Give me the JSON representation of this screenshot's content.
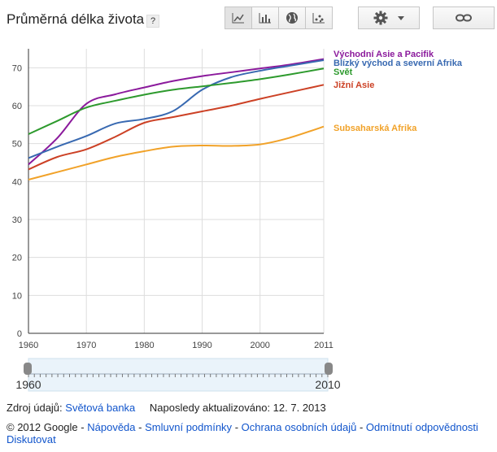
{
  "header": {
    "title": "Průměrná délka života",
    "help": "?"
  },
  "toolbar": {
    "icons": [
      "line-chart-icon",
      "bar-chart-icon",
      "globe-icon",
      "scatter-icon"
    ],
    "settings_icon": "gear-icon",
    "link_icon": "link-icon"
  },
  "chart_data": {
    "type": "line",
    "x": [
      1960,
      1965,
      1970,
      1975,
      1980,
      1985,
      1990,
      1995,
      2000,
      2005,
      2011
    ],
    "xticks": [
      "1960",
      "1970",
      "1980",
      "1990",
      "2000",
      "2011"
    ],
    "xtick_values": [
      1960,
      1970,
      1980,
      1990,
      2000,
      2011
    ],
    "yticks": [
      "0",
      "10",
      "20",
      "30",
      "40",
      "50",
      "60",
      "70"
    ],
    "ylim": [
      0,
      75
    ],
    "xlim": [
      1960,
      2011
    ],
    "series": [
      {
        "name": "Východní Asie a Pacifik",
        "color": "#8b1a9c",
        "values": [
          44.5,
          51.5,
          60.5,
          63.0,
          64.8,
          66.5,
          67.8,
          68.8,
          69.8,
          70.8,
          72.3
        ]
      },
      {
        "name": "Blízký východ a severní Afrika",
        "color": "#3869b1",
        "values": [
          46.2,
          49.2,
          52.0,
          55.3,
          56.5,
          58.6,
          64.2,
          67.5,
          69.2,
          70.5,
          72.0
        ]
      },
      {
        "name": "Svět",
        "color": "#2d9a2d",
        "values": [
          52.5,
          56.0,
          59.5,
          61.3,
          62.9,
          64.2,
          65.1,
          66.0,
          67.0,
          68.2,
          69.8
        ]
      },
      {
        "name": "Jižní Asie",
        "color": "#cc4125",
        "values": [
          43.2,
          46.5,
          48.5,
          51.8,
          55.5,
          57.0,
          58.5,
          60.0,
          61.8,
          63.5,
          65.5
        ]
      },
      {
        "name": "Subsaharská Afrika",
        "color": "#f1a229",
        "values": [
          40.5,
          42.5,
          44.5,
          46.5,
          48.0,
          49.2,
          49.5,
          49.4,
          49.8,
          51.5,
          54.5
        ]
      }
    ]
  },
  "slider": {
    "start": "1960",
    "end": "2010"
  },
  "footer": {
    "source_label": "Zdroj údajů:",
    "source_link": "Světová banka",
    "updated": "Naposledy aktualizováno: 12. 7. 2013",
    "copyright": "© 2012 Google",
    "sep": "-",
    "links": [
      "Nápověda",
      "Smluvní podmínky",
      "Ochrana osobních údajů",
      "Odmítnutí odpovědnosti",
      "Diskutovat"
    ]
  }
}
